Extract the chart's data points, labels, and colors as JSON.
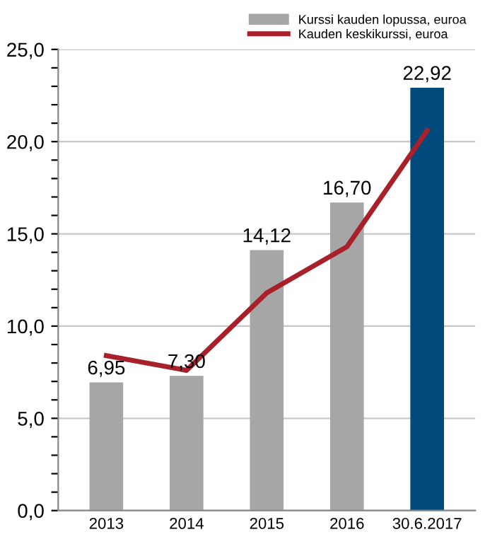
{
  "chart_data": {
    "type": "bar",
    "categories": [
      "2013",
      "2014",
      "2015",
      "2016",
      "30.6.2017"
    ],
    "series": [
      {
        "name": "Kurssi kauden lopussa, euroa",
        "color": "#a6a6a6",
        "colors": [
          "#a6a6a6",
          "#a6a6a6",
          "#a6a6a6",
          "#a6a6a6",
          "#004a7c"
        ],
        "values": [
          6.95,
          7.3,
          14.12,
          16.7,
          22.92
        ],
        "value_labels": [
          "6,95",
          "7,30",
          "14,12",
          "16,70",
          "22,92"
        ]
      },
      {
        "name": "Kauden keskikurssi, euroa",
        "type": "line",
        "color": "#a8202a",
        "values": [
          8.4,
          7.6,
          11.8,
          14.3,
          20.6
        ]
      }
    ],
    "ylim": [
      0,
      25
    ],
    "yticks": [
      {
        "value": 0,
        "label": "0,0"
      },
      {
        "value": 1,
        "label": null
      },
      {
        "value": 2,
        "label": null
      },
      {
        "value": 3,
        "label": null
      },
      {
        "value": 4,
        "label": null
      },
      {
        "value": 5,
        "label": "5,0"
      },
      {
        "value": 6,
        "label": null
      },
      {
        "value": 7,
        "label": null
      },
      {
        "value": 8,
        "label": null
      },
      {
        "value": 9,
        "label": null
      },
      {
        "value": 10,
        "label": "10,0"
      },
      {
        "value": 11,
        "label": null
      },
      {
        "value": 12,
        "label": null
      },
      {
        "value": 13,
        "label": null
      },
      {
        "value": 14,
        "label": null
      },
      {
        "value": 15,
        "label": "15,0"
      },
      {
        "value": 16,
        "label": null
      },
      {
        "value": 17,
        "label": null
      },
      {
        "value": 18,
        "label": null
      },
      {
        "value": 19,
        "label": null
      },
      {
        "value": 20,
        "label": "20,0"
      },
      {
        "value": 21,
        "label": null
      },
      {
        "value": 22,
        "label": null
      },
      {
        "value": 23,
        "label": null
      },
      {
        "value": 24,
        "label": null
      },
      {
        "value": 25,
        "label": "25,0"
      }
    ],
    "grid": "y",
    "legend": "top right"
  }
}
